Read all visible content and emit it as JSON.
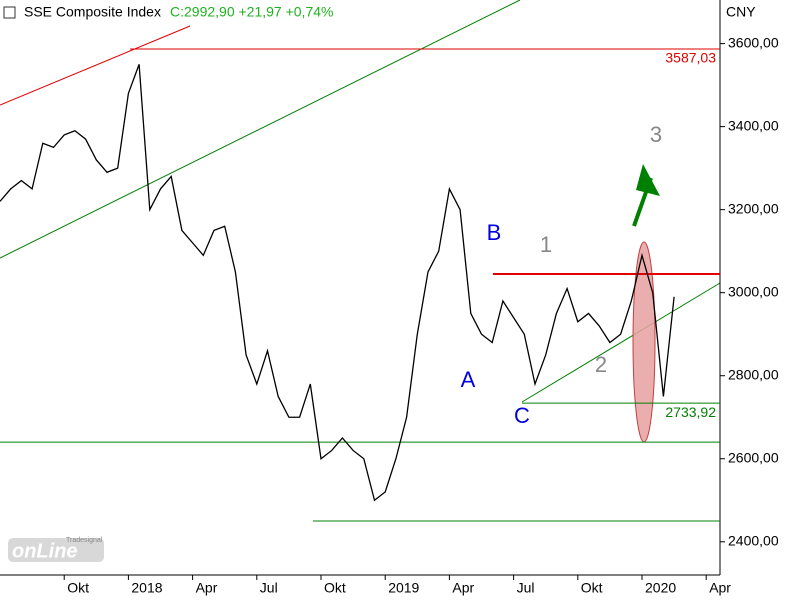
{
  "chart_data": {
    "type": "line",
    "title": "SSE Composite Index",
    "quote": "C:2992,90 +21,97 +0,74%",
    "currency": "CNY",
    "logo_small": "Tradesignal",
    "logo_big": "onLine",
    "categories": [
      null,
      null,
      null,
      null,
      null,
      null,
      "Okt",
      null,
      null,
      null,
      null,
      null,
      "2018",
      null,
      null,
      null,
      null,
      null,
      "Apr",
      null,
      null,
      null,
      null,
      null,
      "Jul",
      null,
      null,
      null,
      null,
      null,
      "Okt",
      null,
      null,
      null,
      null,
      null,
      "2019",
      null,
      null,
      null,
      null,
      null,
      "Apr",
      null,
      null,
      null,
      null,
      null,
      "Jul",
      null,
      null,
      null,
      null,
      null,
      "Okt",
      null,
      null,
      null,
      null,
      null,
      "2020",
      null,
      null,
      null,
      null,
      null,
      "Apr"
    ],
    "series": [
      {
        "name": "SSE Composite Index",
        "color": "#000000",
        "values": [
          3220,
          3250,
          3270,
          3250,
          3360,
          3350,
          3380,
          3390,
          3370,
          3320,
          3290,
          3300,
          3480,
          3550,
          3200,
          3250,
          3280,
          3150,
          3120,
          3090,
          3150,
          3160,
          3050,
          2850,
          2780,
          2860,
          2750,
          2700,
          2700,
          2780,
          2600,
          2620,
          2650,
          2620,
          2600,
          2500,
          2520,
          2600,
          2700,
          2900,
          3050,
          3100,
          3250,
          3200,
          2950,
          2900,
          2880,
          2980,
          2940,
          2900,
          2780,
          2850,
          2950,
          3010,
          2930,
          2950,
          2920,
          2880,
          2900,
          2980,
          3090,
          3000,
          2750,
          2990,
          null,
          null,
          null
        ]
      }
    ],
    "ylim": [
      2320,
      3705
    ],
    "yticks": [
      {
        "value": 2400,
        "label": "2400,00"
      },
      {
        "value": 2600,
        "label": "2600,00"
      },
      {
        "value": 2800,
        "label": "2800,00"
      },
      {
        "value": 3000,
        "label": "3000,00"
      },
      {
        "value": 3200,
        "label": "3200,00"
      },
      {
        "value": 3400,
        "label": "3400,00"
      },
      {
        "value": 3600,
        "label": "3600,00"
      }
    ],
    "levels": [
      {
        "value": 3587.03,
        "label": "3587,03",
        "color": "#e00000"
      },
      {
        "value": 3045,
        "color": "#e00000"
      },
      {
        "value": 2733.92,
        "label": "2733,92",
        "color": "#008000"
      },
      {
        "value": 2640,
        "color": "#008000"
      },
      {
        "value": 2450,
        "color": "#008000"
      }
    ],
    "annotations": [
      {
        "text": "A",
        "color": "#0000e0"
      },
      {
        "text": "B",
        "color": "#0000e0"
      },
      {
        "text": "C",
        "color": "#0000e0"
      },
      {
        "text": "1",
        "color": "#888888"
      },
      {
        "text": "2",
        "color": "#888888"
      },
      {
        "text": "3",
        "color": "#888888"
      }
    ]
  }
}
